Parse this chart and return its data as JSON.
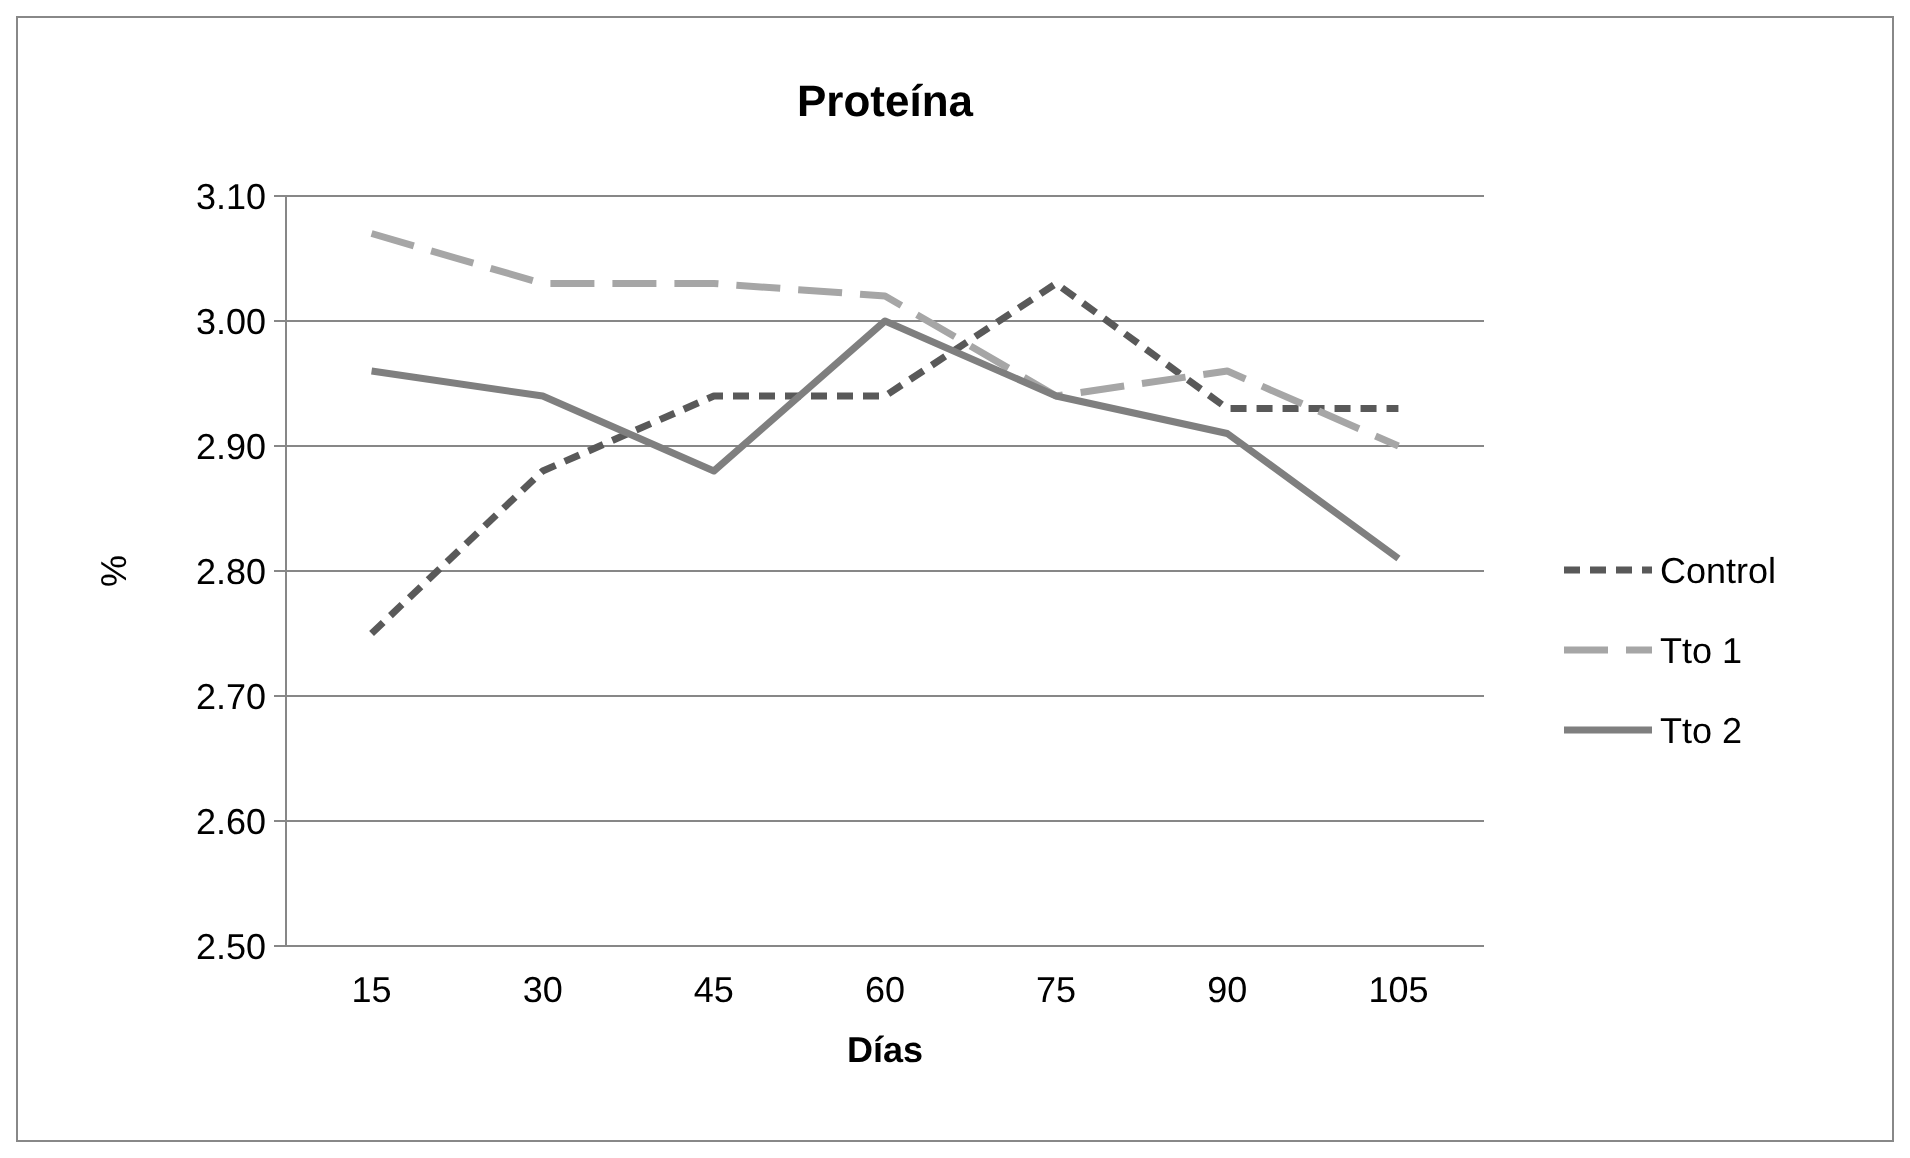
{
  "chart_data": {
    "type": "line",
    "title": "Proteína",
    "xlabel": "Días",
    "ylabel": "%",
    "categories": [
      "15",
      "30",
      "45",
      "60",
      "75",
      "90",
      "105"
    ],
    "series": [
      {
        "name": "Control",
        "color": "#595959",
        "line_style": "dashed",
        "values": [
          2.75,
          2.88,
          2.94,
          2.94,
          3.03,
          2.93,
          2.93
        ]
      },
      {
        "name": "Tto 1",
        "color": "#a6a6a6",
        "line_style": "dashed",
        "values": [
          3.07,
          3.03,
          3.03,
          3.02,
          2.94,
          2.96,
          2.9
        ]
      },
      {
        "name": "Tto 2",
        "color": "#7f7f7f",
        "line_style": "solid",
        "values": [
          2.96,
          2.94,
          2.88,
          3.0,
          2.94,
          2.91,
          2.81
        ]
      }
    ],
    "ylim": [
      2.5,
      3.1
    ],
    "yticks": [
      {
        "value": 2.5,
        "label": "2.50"
      },
      {
        "value": 2.6,
        "label": "2.60"
      },
      {
        "value": 2.7,
        "label": "2.70"
      },
      {
        "value": 2.8,
        "label": "2.80"
      },
      {
        "value": 2.9,
        "label": "2.90"
      },
      {
        "value": 3.0,
        "label": "3.00"
      },
      {
        "value": 3.1,
        "label": "3.10"
      }
    ],
    "grid": "y",
    "legend": "right",
    "marker": "none"
  }
}
